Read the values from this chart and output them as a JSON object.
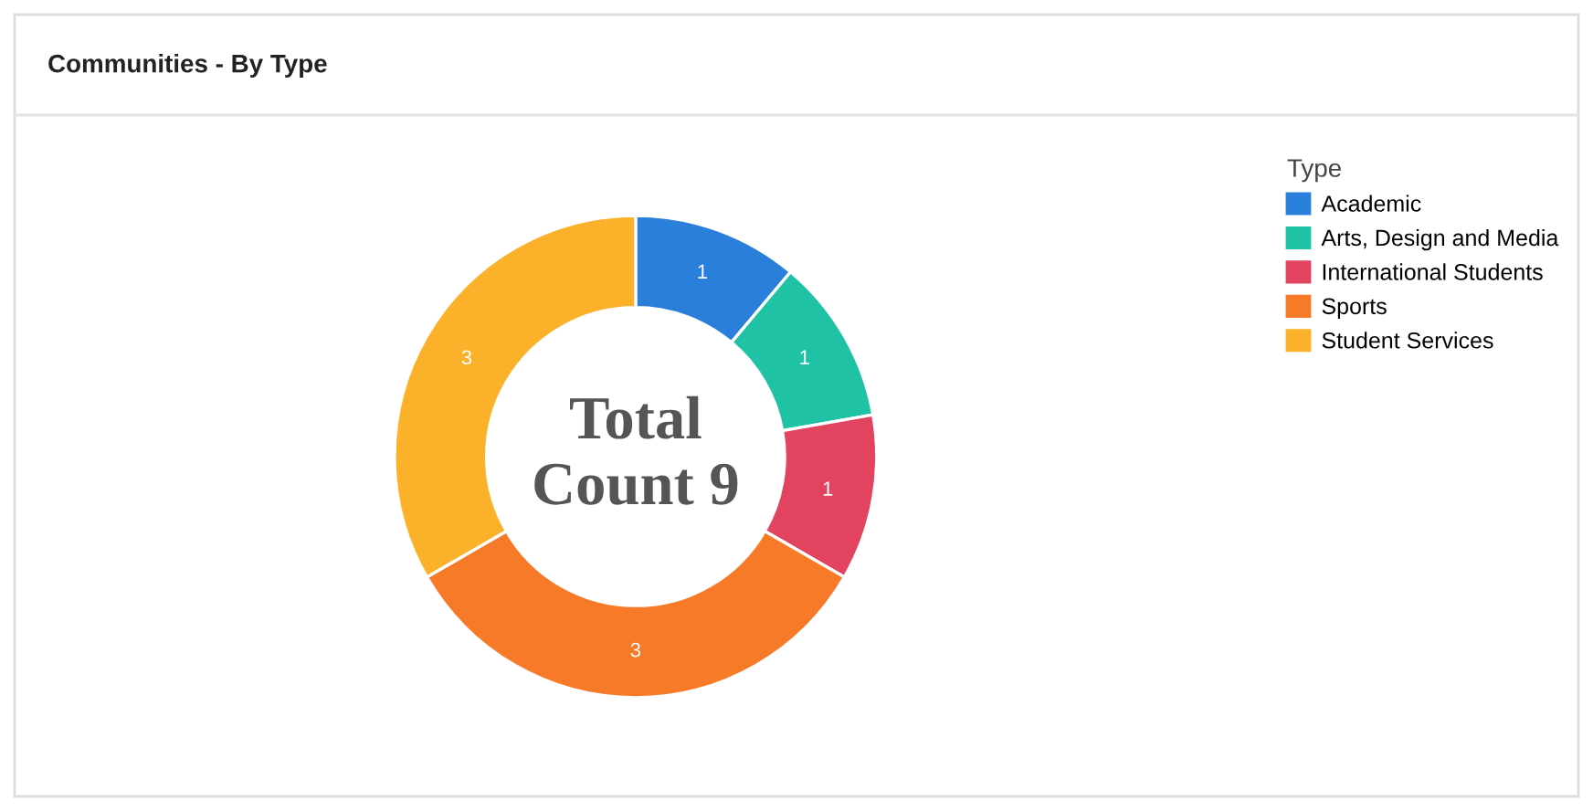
{
  "chart_data": {
    "type": "donut",
    "title": "Communities - By Type",
    "legend_title": "Type",
    "categories": [
      "Academic",
      "Arts, Design and Media",
      "International Students",
      "Sports",
      "Student Services"
    ],
    "values": [
      1,
      1,
      1,
      3,
      3
    ],
    "colors": [
      "#2a7fdb",
      "#1fc2a5",
      "#e2445f",
      "#f67a27",
      "#fbb12a"
    ],
    "annotations": [
      "Total\nCount 9"
    ],
    "data_labels": true,
    "legend": "right"
  }
}
